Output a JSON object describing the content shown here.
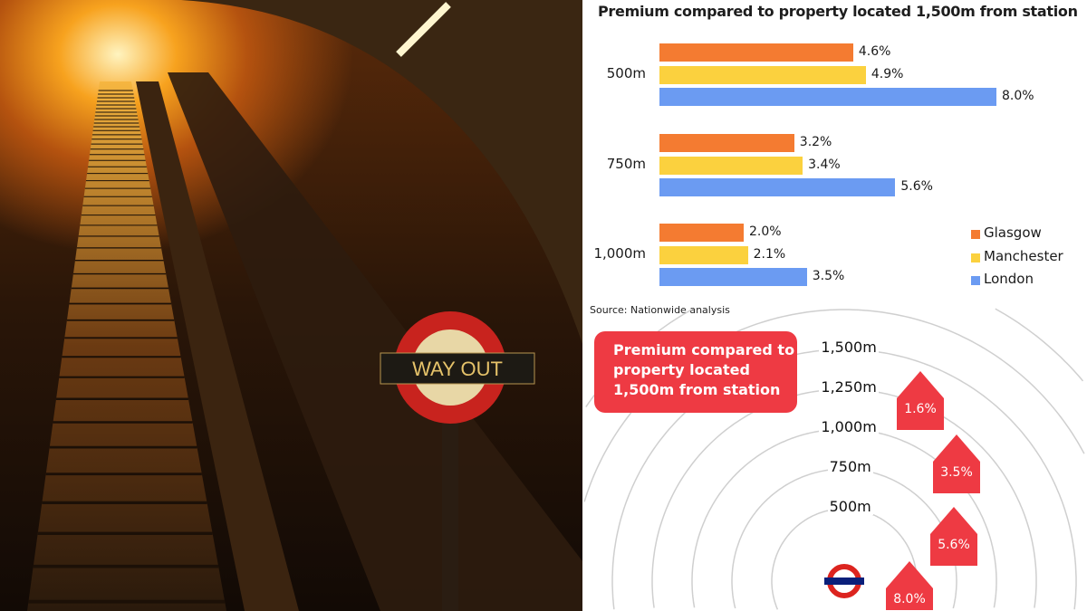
{
  "photo": {
    "sign_text": "WAY OUT"
  },
  "chart_data": [
    {
      "type": "bar",
      "orientation": "horizontal",
      "title": "Premium compared to property located 1,500m from station",
      "categories": [
        "500m",
        "750m",
        "1,000m"
      ],
      "series": [
        {
          "name": "Glasgow",
          "color": "#f47b31",
          "values": [
            4.6,
            3.2,
            2.0
          ],
          "labels": [
            "4.6%",
            "3.2%",
            "2.0%"
          ]
        },
        {
          "name": "Manchester",
          "color": "#fbd13e",
          "values": [
            4.9,
            3.4,
            2.1
          ],
          "labels": [
            "4.9%",
            "3.4%",
            "2.1%"
          ]
        },
        {
          "name": "London",
          "color": "#6b9bf2",
          "values": [
            8.0,
            5.6,
            3.5
          ],
          "labels": [
            "8.0%",
            "5.6%",
            "3.5%"
          ]
        }
      ],
      "xlim": [
        0,
        8
      ],
      "grid": false,
      "legend": "bottom-right",
      "source": "Source: Nationwide analysis"
    },
    {
      "type": "diagram",
      "title": "Premium compared to property located 1,500m from station",
      "rings": [
        "1,500m",
        "1,250m",
        "1,000m",
        "750m",
        "500m"
      ],
      "markers": [
        {
          "ring": "1,250m",
          "label": "1.6%"
        },
        {
          "ring": "1,000m",
          "label": "3.5%"
        },
        {
          "ring": "750m",
          "label": "5.6%"
        },
        {
          "ring": "500m",
          "label": "8.0%"
        }
      ],
      "marker_color": "#ee3a43",
      "center_icon": "london-underground-roundel-icon"
    }
  ]
}
